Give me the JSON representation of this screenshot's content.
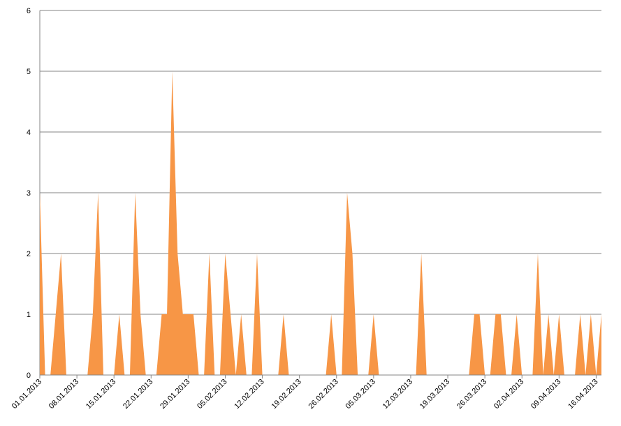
{
  "chart_data": {
    "type": "area",
    "color": "#f79646",
    "categories": [
      "01.01.2013",
      null,
      null,
      null,
      null,
      null,
      null,
      "08.01.2013",
      null,
      null,
      null,
      null,
      null,
      null,
      "15.01.2013",
      null,
      null,
      null,
      null,
      null,
      null,
      "22.01.2013",
      null,
      null,
      null,
      null,
      null,
      null,
      "29.01.2013",
      null,
      null,
      null,
      null,
      null,
      null,
      "05.02.2013",
      null,
      null,
      null,
      null,
      null,
      null,
      "12.02.2013",
      null,
      null,
      null,
      null,
      null,
      null,
      "19.02.2013",
      null,
      null,
      null,
      null,
      null,
      null,
      "26.02.2013",
      null,
      null,
      null,
      null,
      null,
      null,
      "05.03.2013",
      null,
      null,
      null,
      null,
      null,
      null,
      "12.03.2013",
      null,
      null,
      null,
      null,
      null,
      null,
      "19.03.2013",
      null,
      null,
      null,
      null,
      null,
      null,
      "26.03.2013",
      null,
      null,
      null,
      null,
      null,
      null,
      "02.04.2013",
      null,
      null,
      null,
      null,
      null,
      null,
      "09.04.2013",
      null,
      null,
      null,
      null,
      null,
      null,
      "16.04.2013",
      null
    ],
    "values": [
      3,
      0,
      0,
      1,
      2,
      0,
      0,
      0,
      0,
      0,
      1,
      3,
      0,
      0,
      0,
      1,
      0,
      0,
      3,
      1,
      0,
      0,
      0,
      1,
      1,
      5,
      2,
      1,
      1,
      1,
      0,
      0,
      2,
      0,
      0,
      2,
      1,
      0,
      1,
      0,
      0,
      2,
      0,
      0,
      0,
      0,
      1,
      0,
      0,
      0,
      0,
      0,
      0,
      0,
      0,
      1,
      0,
      0,
      3,
      2,
      0,
      0,
      0,
      1,
      0,
      0,
      0,
      0,
      0,
      0,
      0,
      0,
      2,
      0,
      0,
      0,
      0,
      0,
      0,
      0,
      0,
      0,
      1,
      1,
      0,
      0,
      1,
      1,
      0,
      0,
      1,
      0,
      0,
      0,
      2,
      0,
      1,
      0,
      1,
      0,
      0,
      0,
      1,
      0,
      1,
      0,
      1
    ],
    "ylim": [
      0,
      6
    ],
    "yticks": [
      0,
      1,
      2,
      3,
      4,
      5,
      6
    ],
    "grid": true
  }
}
